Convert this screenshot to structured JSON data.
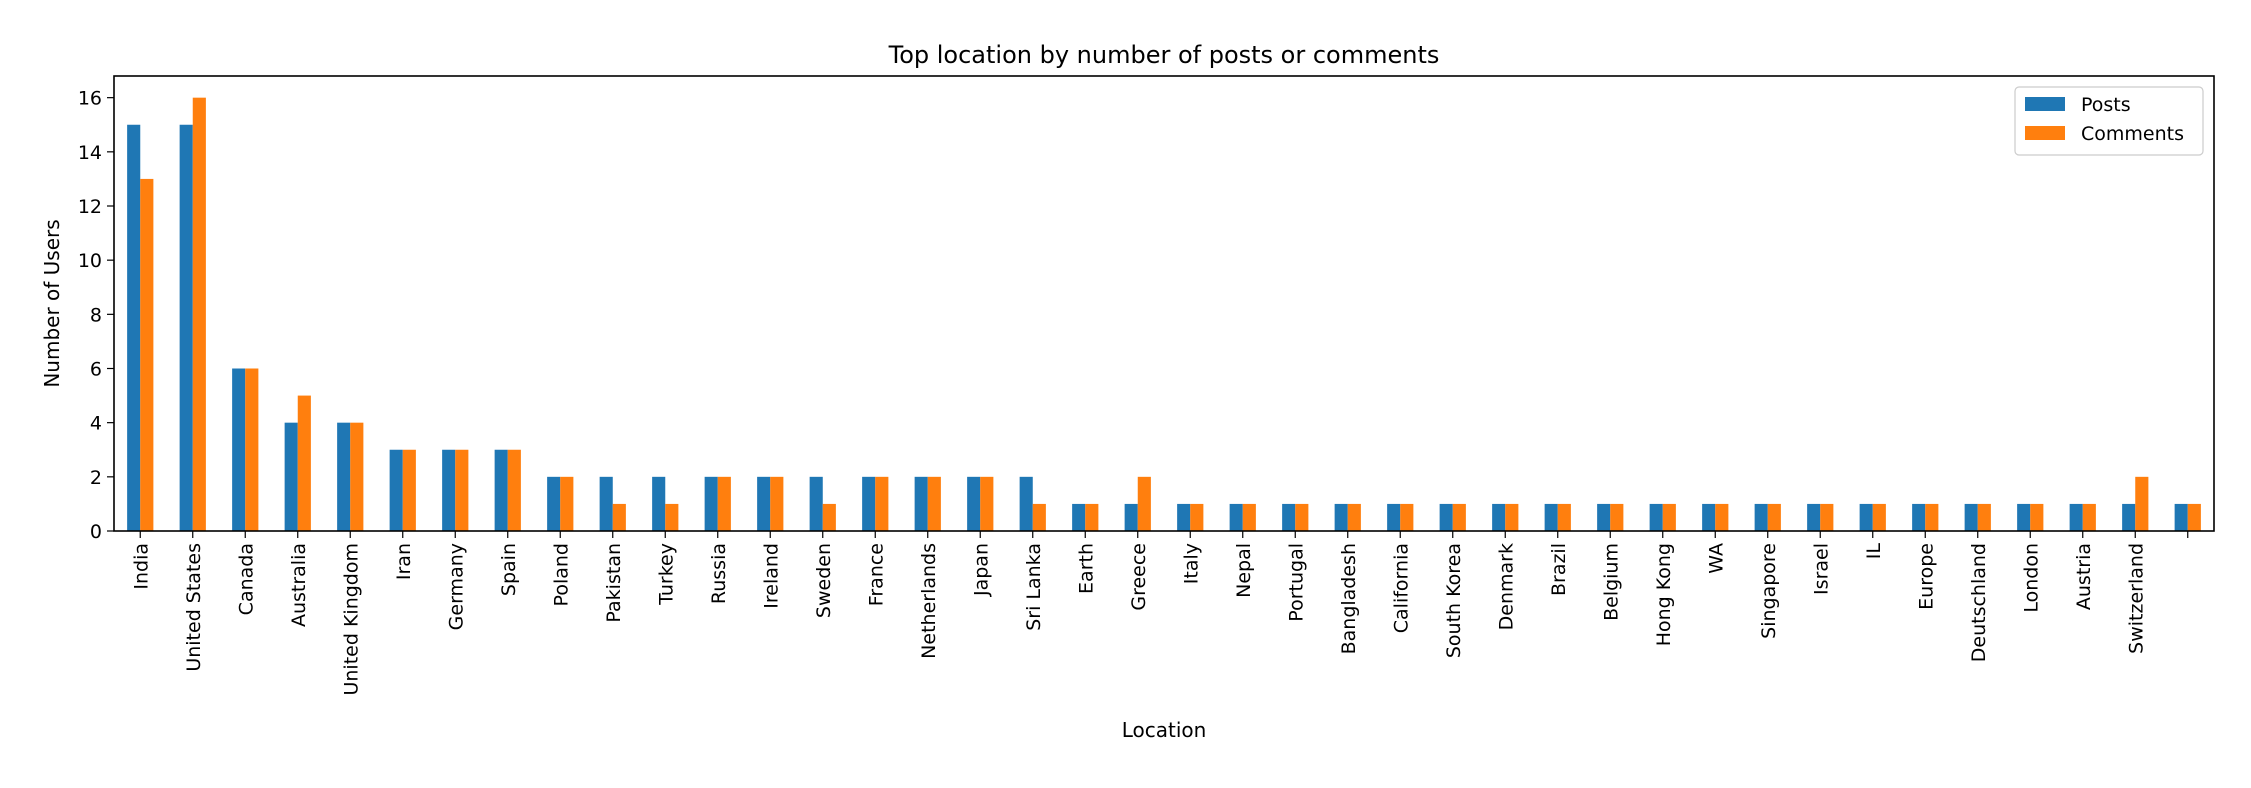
{
  "chart_data": {
    "type": "bar",
    "title": "Top location by number of posts or comments",
    "xlabel": "Location",
    "ylabel": "Number of Users",
    "ylim": [
      0,
      16.8
    ],
    "yticks": [
      0,
      2,
      4,
      6,
      8,
      10,
      12,
      14,
      16
    ],
    "grid": false,
    "legend_position": "top-right",
    "categories": [
      "India",
      "United States",
      "Canada",
      "Australia",
      "United Kingdom",
      "Iran",
      "Germany",
      "Spain",
      "Poland",
      "Pakistan",
      "Turkey",
      "Russia",
      "Ireland",
      "Sweden",
      "France",
      "Netherlands",
      "Japan",
      "Sri Lanka",
      "Earth",
      "Greece",
      "Italy",
      "Nepal",
      "Portugal",
      "Bangladesh",
      "California",
      "South Korea",
      "Denmark",
      "Brazil",
      "Belgium",
      "Hong Kong",
      "WA",
      "Singapore",
      "Israel",
      "IL",
      "Europe",
      "Deutschland",
      "London",
      "Austria",
      "Switzerland",
      ""
    ],
    "series": [
      {
        "name": "Posts",
        "color": "#1f77b4",
        "values": [
          15,
          15,
          6,
          4,
          4,
          3,
          3,
          3,
          2,
          2,
          2,
          2,
          2,
          2,
          2,
          2,
          2,
          2,
          1,
          1,
          1,
          1,
          1,
          1,
          1,
          1,
          1,
          1,
          1,
          1,
          1,
          1,
          1,
          1,
          1,
          1,
          1,
          1,
          1,
          1
        ]
      },
      {
        "name": "Comments",
        "color": "#ff7f0e",
        "values": [
          13,
          16,
          6,
          5,
          4,
          3,
          3,
          3,
          2,
          1,
          1,
          2,
          2,
          1,
          2,
          2,
          2,
          1,
          1,
          2,
          1,
          1,
          1,
          1,
          1,
          1,
          1,
          1,
          1,
          1,
          1,
          1,
          1,
          1,
          1,
          1,
          1,
          1,
          2,
          1
        ]
      }
    ]
  }
}
